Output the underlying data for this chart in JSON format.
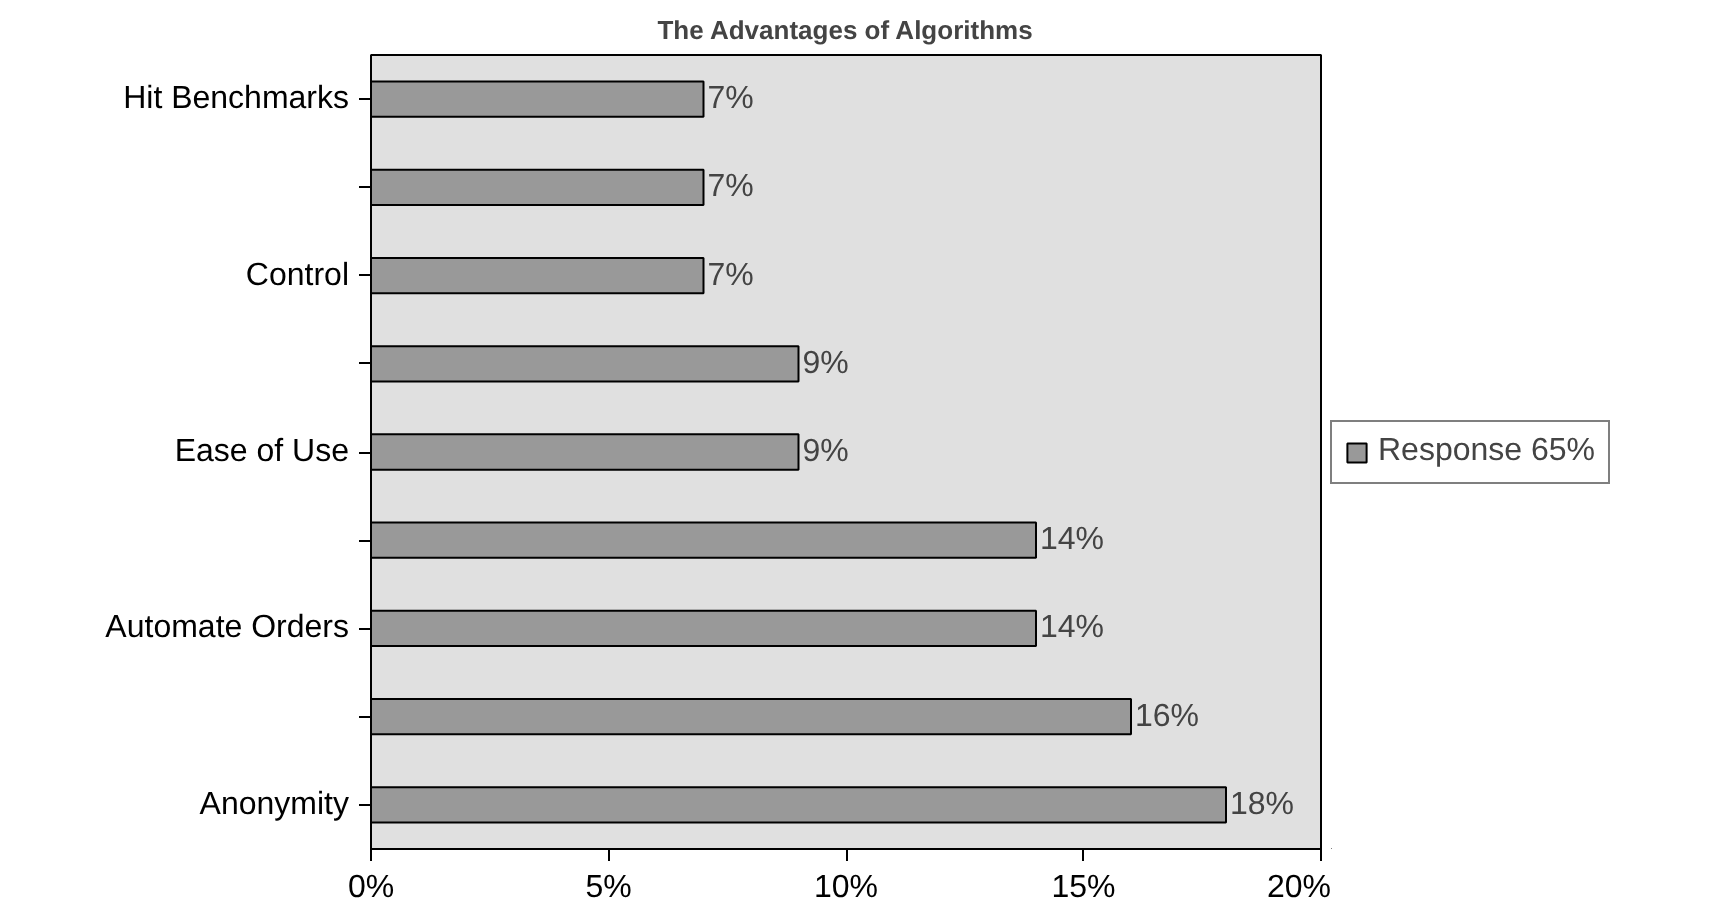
{
  "chart_data": {
    "type": "bar",
    "orientation": "horizontal",
    "title": "The Advantages of Algorithms",
    "categories": [
      "Hit Benchmarks",
      null,
      "Control",
      null,
      "Ease of Use",
      null,
      "Automate Orders",
      null,
      "Anonymity"
    ],
    "series": [
      {
        "name": "Response 65%",
        "color": "#999999",
        "values": [
          7,
          7,
          7,
          9,
          9,
          14,
          14,
          16,
          18
        ],
        "value_labels": [
          "7%",
          "7%",
          "7%",
          "9%",
          "9%",
          "14%",
          "14%",
          "16%",
          "18%"
        ]
      }
    ],
    "xlim": [
      0,
      20
    ],
    "xticks": [
      {
        "value": 0,
        "label": "0%"
      },
      {
        "value": 5,
        "label": "5%"
      },
      {
        "value": 10,
        "label": "10%"
      },
      {
        "value": 15,
        "label": "15%"
      },
      {
        "value": 20,
        "label": "20%"
      }
    ],
    "grid": false,
    "legend": "right"
  }
}
